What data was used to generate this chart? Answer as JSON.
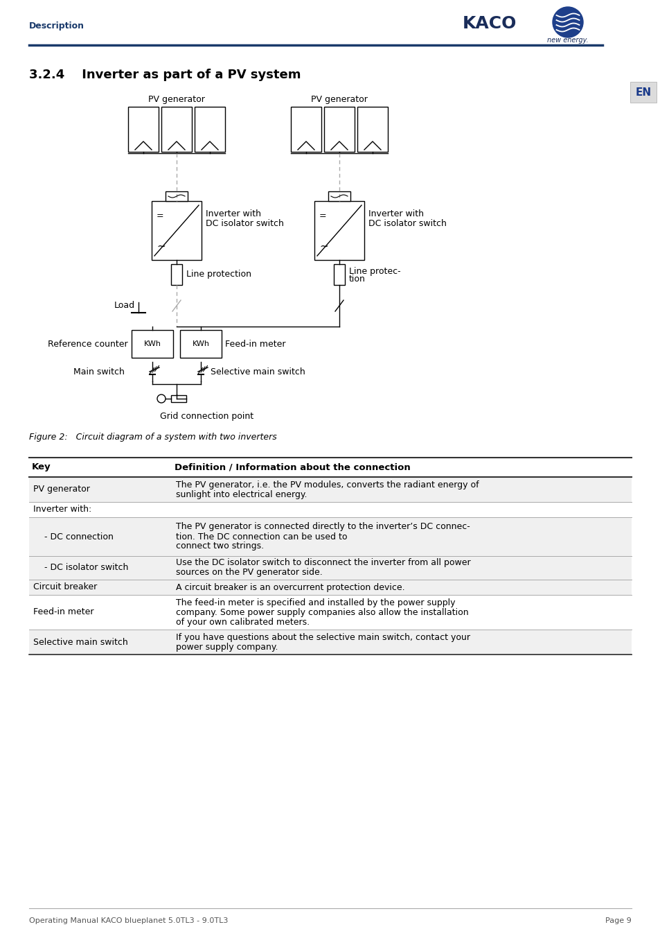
{
  "title": "3.2.4    Inverter as part of a PV system",
  "header_left": "Description",
  "footer_left": "Operating Manual KACO blueplanet 5.0TL3 - 9.0TL3",
  "footer_right": "Page 9",
  "en_label": "EN",
  "figure_caption": "Figure 2:   Circuit diagram of a system with two inverters",
  "table_headers": [
    "Key",
    "Definition / Information about the connection"
  ],
  "table_rows": [
    [
      "PV generator",
      "The PV generator, i.e. the PV modules, converts the radiant energy of\nsunlight into electrical energy."
    ],
    [
      "Inverter with:",
      ""
    ],
    [
      "    - DC connection",
      "The PV generator is connected directly to the inverter’s DC connec-\ntion. The DC connection can be used to\nconnect two strings."
    ],
    [
      "    - DC isolator switch",
      "Use the DC isolator switch to disconnect the inverter from all power\nsources on the PV generator side."
    ],
    [
      "Circuit breaker",
      "A circuit breaker is an overcurrent protection device."
    ],
    [
      "Feed-in meter",
      "The feed-in meter is specified and installed by the power supply\ncompany. Some power supply companies also allow the installation\nof your own calibrated meters."
    ],
    [
      "Selective main switch",
      "If you have questions about the selective main switch, contact your\npower supply company."
    ]
  ],
  "line_color": "#1a3a6b",
  "text_color": "#000000",
  "bg_color": "#ffffff",
  "row_bgs": [
    "#f0f0f0",
    "#ffffff",
    "#f0f0f0",
    "#f0f0f0",
    "#f0f0f0",
    "#ffffff",
    "#f0f0f0"
  ]
}
